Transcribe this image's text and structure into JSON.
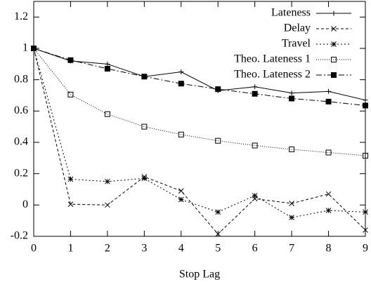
{
  "chart_data": {
    "type": "line",
    "xlabel": "Stop Lag",
    "x": [
      0,
      1,
      2,
      3,
      4,
      5,
      6,
      7,
      8,
      9
    ],
    "xlim": [
      0,
      9
    ],
    "xticks": [
      0,
      1,
      2,
      3,
      4,
      5,
      6,
      7,
      8,
      9
    ],
    "ylim": [
      -0.2,
      1.3
    ],
    "yticks": [
      -0.2,
      0,
      0.2,
      0.4,
      0.6,
      0.8,
      1,
      1.2
    ],
    "legend": "top-right",
    "series": [
      {
        "name": "Lateness",
        "color": "#000000",
        "marker": "plus",
        "dash": "none",
        "values": [
          1,
          0.92,
          0.9,
          0.82,
          0.85,
          0.73,
          0.755,
          0.715,
          0.725,
          0.67
        ]
      },
      {
        "name": "Delay",
        "color": "#000000",
        "marker": "cross",
        "dash": "4,3",
        "values": [
          1,
          0.005,
          0.0,
          0.18,
          0.09,
          -0.185,
          0.04,
          0.01,
          0.07,
          -0.16
        ]
      },
      {
        "name": "Travel",
        "color": "#000000",
        "marker": "star",
        "dash": "2,3",
        "values": [
          1,
          0.165,
          0.15,
          0.17,
          0.035,
          -0.045,
          0.06,
          -0.08,
          -0.035,
          -0.045
        ]
      },
      {
        "name": "Theo. Lateness 1",
        "color": "#000000",
        "marker": "square-open",
        "dash": "1,2",
        "values": [
          1,
          0.705,
          0.58,
          0.5,
          0.45,
          0.41,
          0.38,
          0.355,
          0.335,
          0.315
        ]
      },
      {
        "name": "Theo. Lateness 2",
        "color": "#000000",
        "marker": "square-filled",
        "dash": "8,3,2,3",
        "values": [
          1,
          0.925,
          0.87,
          0.82,
          0.775,
          0.74,
          0.71,
          0.68,
          0.66,
          0.635
        ]
      }
    ]
  }
}
